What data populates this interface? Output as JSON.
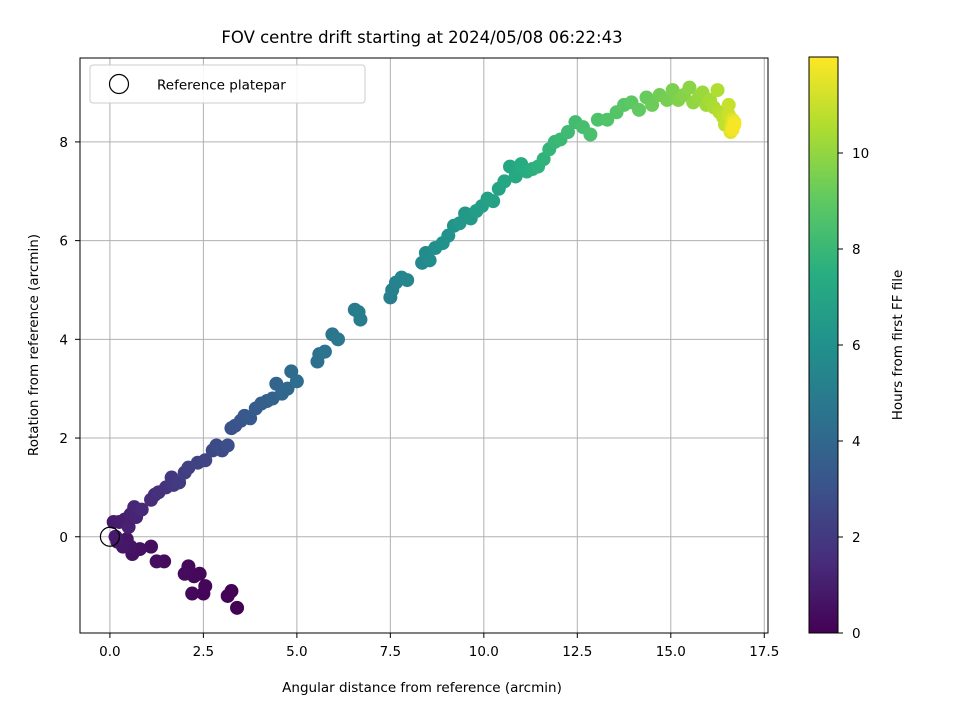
{
  "chart_data": {
    "type": "scatter",
    "title": "FOV centre drift starting at 2024/05/08 06:22:43",
    "xlabel": "Angular distance from reference (arcmin)",
    "ylabel": "Rotation from reference (arcmin)",
    "xlim": [
      -0.8,
      17.6
    ],
    "ylim": [
      -1.95,
      9.7
    ],
    "xticks": [
      0.0,
      2.5,
      5.0,
      7.5,
      10.0,
      12.5,
      15.0,
      17.5
    ],
    "xtick_labels": [
      "0.0",
      "2.5",
      "5.0",
      "7.5",
      "10.0",
      "12.5",
      "15.0",
      "17.5"
    ],
    "yticks": [
      0,
      2,
      4,
      6,
      8
    ],
    "ytick_labels": [
      "0",
      "2",
      "4",
      "6",
      "8"
    ],
    "grid": true,
    "legend": {
      "position": "upper-left",
      "entries": [
        "Reference platepar"
      ]
    },
    "colormap": "viridis",
    "colorbar": {
      "label": "Hours from first FF file",
      "range": [
        0,
        12
      ],
      "ticks": [
        0,
        2,
        4,
        6,
        8,
        10
      ],
      "tick_labels": [
        "0",
        "2",
        "4",
        "6",
        "8",
        "10"
      ]
    },
    "reference_point": {
      "x": 0.0,
      "y": 0.0
    },
    "series": [
      {
        "points": [
          {
            "x": 3.4,
            "y": -1.44,
            "c": 0.0
          },
          {
            "x": 3.25,
            "y": -1.1,
            "c": 0.04
          },
          {
            "x": 3.15,
            "y": -1.2,
            "c": 0.08
          },
          {
            "x": 2.5,
            "y": -1.15,
            "c": 0.12
          },
          {
            "x": 2.55,
            "y": -1.0,
            "c": 0.16
          },
          {
            "x": 2.4,
            "y": -0.75,
            "c": 0.2
          },
          {
            "x": 2.2,
            "y": -1.15,
            "c": 0.24
          },
          {
            "x": 2.25,
            "y": -0.8,
            "c": 0.28
          },
          {
            "x": 2.1,
            "y": -0.6,
            "c": 0.32
          },
          {
            "x": 2.0,
            "y": -0.75,
            "c": 0.36
          },
          {
            "x": 1.45,
            "y": -0.5,
            "c": 0.4
          },
          {
            "x": 1.25,
            "y": -0.5,
            "c": 0.44
          },
          {
            "x": 1.1,
            "y": -0.2,
            "c": 0.48
          },
          {
            "x": 0.8,
            "y": -0.25,
            "c": 0.55
          },
          {
            "x": 0.6,
            "y": -0.35,
            "c": 0.6
          },
          {
            "x": 0.55,
            "y": -0.2,
            "c": 0.65
          },
          {
            "x": 0.45,
            "y": -0.05,
            "c": 0.7
          },
          {
            "x": 0.35,
            "y": -0.2,
            "c": 0.75
          },
          {
            "x": 0.2,
            "y": -0.1,
            "c": 0.8
          },
          {
            "x": 0.15,
            "y": 0.0,
            "c": 0.85
          },
          {
            "x": 0.1,
            "y": 0.3,
            "c": 0.9
          },
          {
            "x": 0.25,
            "y": 0.3,
            "c": 0.95
          },
          {
            "x": 0.4,
            "y": 0.35,
            "c": 1.0
          },
          {
            "x": 0.55,
            "y": 0.45,
            "c": 1.1
          },
          {
            "x": 0.5,
            "y": 0.2,
            "c": 1.15
          },
          {
            "x": 0.7,
            "y": 0.4,
            "c": 1.25
          },
          {
            "x": 0.65,
            "y": 0.6,
            "c": 1.3
          },
          {
            "x": 0.85,
            "y": 0.55,
            "c": 1.4
          },
          {
            "x": 1.1,
            "y": 0.75,
            "c": 1.5
          },
          {
            "x": 1.2,
            "y": 0.85,
            "c": 1.6
          },
          {
            "x": 1.3,
            "y": 0.9,
            "c": 1.7
          },
          {
            "x": 1.5,
            "y": 1.0,
            "c": 1.8
          },
          {
            "x": 1.65,
            "y": 1.2,
            "c": 1.9
          },
          {
            "x": 1.7,
            "y": 1.05,
            "c": 2.0
          },
          {
            "x": 1.85,
            "y": 1.1,
            "c": 2.1
          },
          {
            "x": 2.0,
            "y": 1.3,
            "c": 2.2
          },
          {
            "x": 2.1,
            "y": 1.4,
            "c": 2.3
          },
          {
            "x": 2.35,
            "y": 1.5,
            "c": 2.4
          },
          {
            "x": 2.55,
            "y": 1.55,
            "c": 2.5
          },
          {
            "x": 2.75,
            "y": 1.75,
            "c": 2.6
          },
          {
            "x": 2.85,
            "y": 1.85,
            "c": 2.7
          },
          {
            "x": 3.0,
            "y": 1.75,
            "c": 2.8
          },
          {
            "x": 3.15,
            "y": 1.85,
            "c": 2.9
          },
          {
            "x": 3.25,
            "y": 2.2,
            "c": 3.0
          },
          {
            "x": 3.35,
            "y": 2.25,
            "c": 3.1
          },
          {
            "x": 3.5,
            "y": 2.35,
            "c": 3.2
          },
          {
            "x": 3.6,
            "y": 2.45,
            "c": 3.3
          },
          {
            "x": 3.75,
            "y": 2.4,
            "c": 3.4
          },
          {
            "x": 3.9,
            "y": 2.6,
            "c": 3.5
          },
          {
            "x": 4.05,
            "y": 2.7,
            "c": 3.6
          },
          {
            "x": 4.2,
            "y": 2.75,
            "c": 3.7
          },
          {
            "x": 4.35,
            "y": 2.8,
            "c": 3.8
          },
          {
            "x": 4.45,
            "y": 3.1,
            "c": 3.9
          },
          {
            "x": 4.6,
            "y": 2.9,
            "c": 4.0
          },
          {
            "x": 4.75,
            "y": 3.0,
            "c": 4.1
          },
          {
            "x": 4.85,
            "y": 3.35,
            "c": 4.2
          },
          {
            "x": 5.0,
            "y": 3.15,
            "c": 4.3
          },
          {
            "x": 5.55,
            "y": 3.55,
            "c": 4.4
          },
          {
            "x": 5.6,
            "y": 3.7,
            "c": 4.5
          },
          {
            "x": 5.75,
            "y": 3.75,
            "c": 4.6
          },
          {
            "x": 5.95,
            "y": 4.1,
            "c": 4.7
          },
          {
            "x": 6.1,
            "y": 4.0,
            "c": 4.8
          },
          {
            "x": 6.55,
            "y": 4.6,
            "c": 4.9
          },
          {
            "x": 6.7,
            "y": 4.4,
            "c": 5.0
          },
          {
            "x": 6.65,
            "y": 4.55,
            "c": 5.05
          },
          {
            "x": 7.5,
            "y": 4.85,
            "c": 5.1
          },
          {
            "x": 7.55,
            "y": 5.0,
            "c": 5.2
          },
          {
            "x": 7.65,
            "y": 5.15,
            "c": 5.3
          },
          {
            "x": 7.8,
            "y": 5.25,
            "c": 5.4
          },
          {
            "x": 7.95,
            "y": 5.2,
            "c": 5.5
          },
          {
            "x": 8.35,
            "y": 5.55,
            "c": 5.6
          },
          {
            "x": 8.45,
            "y": 5.75,
            "c": 5.7
          },
          {
            "x": 8.55,
            "y": 5.6,
            "c": 5.8
          },
          {
            "x": 8.7,
            "y": 5.85,
            "c": 5.9
          },
          {
            "x": 8.9,
            "y": 5.95,
            "c": 6.0
          },
          {
            "x": 9.05,
            "y": 6.1,
            "c": 6.1
          },
          {
            "x": 9.2,
            "y": 6.3,
            "c": 6.2
          },
          {
            "x": 9.35,
            "y": 6.35,
            "c": 6.3
          },
          {
            "x": 9.5,
            "y": 6.55,
            "c": 6.4
          },
          {
            "x": 9.65,
            "y": 6.45,
            "c": 6.5
          },
          {
            "x": 9.8,
            "y": 6.6,
            "c": 6.6
          },
          {
            "x": 9.95,
            "y": 6.7,
            "c": 6.7
          },
          {
            "x": 10.1,
            "y": 6.85,
            "c": 6.8
          },
          {
            "x": 10.25,
            "y": 6.8,
            "c": 6.9
          },
          {
            "x": 10.4,
            "y": 7.05,
            "c": 7.0
          },
          {
            "x": 10.55,
            "y": 7.2,
            "c": 7.1
          },
          {
            "x": 10.7,
            "y": 7.5,
            "c": 7.2
          },
          {
            "x": 10.85,
            "y": 7.3,
            "c": 7.3
          },
          {
            "x": 11.0,
            "y": 7.55,
            "c": 7.4
          },
          {
            "x": 11.15,
            "y": 7.4,
            "c": 7.5
          },
          {
            "x": 11.3,
            "y": 7.45,
            "c": 7.6
          },
          {
            "x": 11.45,
            "y": 7.5,
            "c": 7.7
          },
          {
            "x": 11.6,
            "y": 7.65,
            "c": 7.8
          },
          {
            "x": 11.75,
            "y": 7.85,
            "c": 7.9
          },
          {
            "x": 11.9,
            "y": 8.0,
            "c": 8.0
          },
          {
            "x": 12.05,
            "y": 8.05,
            "c": 8.1
          },
          {
            "x": 12.25,
            "y": 8.2,
            "c": 8.2
          },
          {
            "x": 12.45,
            "y": 8.4,
            "c": 8.3
          },
          {
            "x": 12.65,
            "y": 8.3,
            "c": 8.4
          },
          {
            "x": 12.85,
            "y": 8.15,
            "c": 8.5
          },
          {
            "x": 13.05,
            "y": 8.45,
            "c": 8.6
          },
          {
            "x": 13.3,
            "y": 8.45,
            "c": 8.7
          },
          {
            "x": 13.55,
            "y": 8.6,
            "c": 8.8
          },
          {
            "x": 13.75,
            "y": 8.75,
            "c": 8.9
          },
          {
            "x": 13.95,
            "y": 8.8,
            "c": 9.0
          },
          {
            "x": 14.15,
            "y": 8.65,
            "c": 9.1
          },
          {
            "x": 14.35,
            "y": 8.9,
            "c": 9.2
          },
          {
            "x": 14.5,
            "y": 8.75,
            "c": 9.3
          },
          {
            "x": 14.7,
            "y": 8.95,
            "c": 9.4
          },
          {
            "x": 14.9,
            "y": 8.85,
            "c": 9.5
          },
          {
            "x": 15.05,
            "y": 9.05,
            "c": 9.6
          },
          {
            "x": 15.2,
            "y": 8.85,
            "c": 9.7
          },
          {
            "x": 15.35,
            "y": 8.95,
            "c": 9.8
          },
          {
            "x": 15.5,
            "y": 9.1,
            "c": 9.9
          },
          {
            "x": 15.6,
            "y": 8.8,
            "c": 10.0
          },
          {
            "x": 15.75,
            "y": 8.9,
            "c": 10.1
          },
          {
            "x": 15.85,
            "y": 9.0,
            "c": 10.2
          },
          {
            "x": 15.95,
            "y": 8.75,
            "c": 10.3
          },
          {
            "x": 16.05,
            "y": 8.85,
            "c": 10.4
          },
          {
            "x": 16.15,
            "y": 8.7,
            "c": 10.5
          },
          {
            "x": 16.25,
            "y": 9.05,
            "c": 10.6
          },
          {
            "x": 16.3,
            "y": 8.6,
            "c": 10.7
          },
          {
            "x": 16.4,
            "y": 8.5,
            "c": 10.8
          },
          {
            "x": 16.45,
            "y": 8.35,
            "c": 10.9
          },
          {
            "x": 16.55,
            "y": 8.75,
            "c": 11.0
          },
          {
            "x": 16.55,
            "y": 8.55,
            "c": 11.1
          },
          {
            "x": 16.6,
            "y": 8.35,
            "c": 11.2
          },
          {
            "x": 16.65,
            "y": 8.25,
            "c": 11.3
          },
          {
            "x": 16.65,
            "y": 8.45,
            "c": 11.4
          },
          {
            "x": 16.6,
            "y": 8.2,
            "c": 11.5
          },
          {
            "x": 16.65,
            "y": 8.3,
            "c": 11.6
          },
          {
            "x": 16.7,
            "y": 8.4,
            "c": 11.7
          },
          {
            "x": 16.65,
            "y": 8.25,
            "c": 11.8
          },
          {
            "x": 16.7,
            "y": 8.35,
            "c": 11.9
          }
        ]
      }
    ]
  }
}
